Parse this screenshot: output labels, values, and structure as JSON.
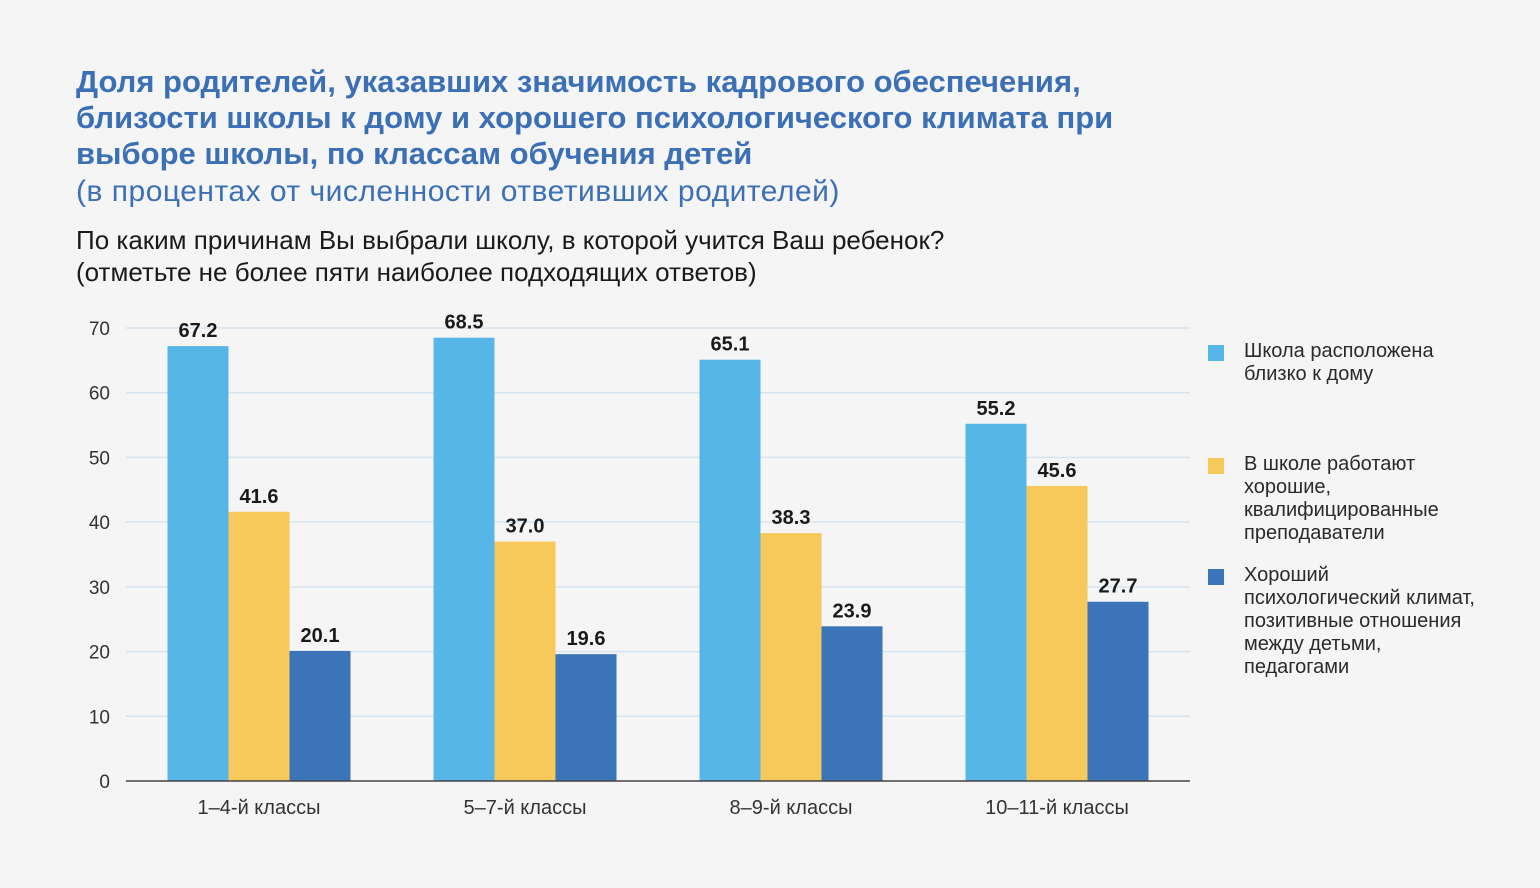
{
  "header": {
    "title": "Доля родителей, указавших значимость кадрового обеспечения, близости школы к дому и хорошего психологического климата при выборе школы, по классам обучения детей",
    "subtitle": "(в процентах от численности ответивших родителей)",
    "question_line1": "По каким причинам Вы выбрали школу, в которой учится Ваш ребенок?",
    "question_line2": "(отметьте не более пяти наиболее подходящих ответов)"
  },
  "chart_data": {
    "type": "bar",
    "categories": [
      "1–4-й классы",
      "5–7-й классы",
      "8–9-й классы",
      "10–11-й классы"
    ],
    "series": [
      {
        "name": "Школа расположена близко к дому",
        "color": "#56b6e8",
        "values": [
          67.2,
          68.5,
          65.1,
          55.2
        ],
        "labels": [
          "67.2",
          "68.5",
          "65.1",
          "55.2"
        ]
      },
      {
        "name": "В школе работают хорошие, квалифицированные преподаватели",
        "color": "#f7c85a",
        "values": [
          41.6,
          37.0,
          38.3,
          45.6
        ],
        "labels": [
          "41.6",
          "37.0",
          "38.3",
          "45.6"
        ]
      },
      {
        "name": "Хороший психологический климат, позитивные отношения между детьми, педагогами",
        "color": "#3b74b9",
        "values": [
          20.1,
          19.6,
          23.9,
          27.7
        ],
        "labels": [
          "20.1",
          "19.6",
          "23.9",
          "27.7"
        ]
      }
    ],
    "ylim": [
      0,
      70
    ],
    "yticks": [
      0,
      10,
      20,
      30,
      40,
      50,
      60,
      70
    ],
    "grid": true,
    "legend_position": "right",
    "xlabel": "",
    "ylabel": ""
  }
}
